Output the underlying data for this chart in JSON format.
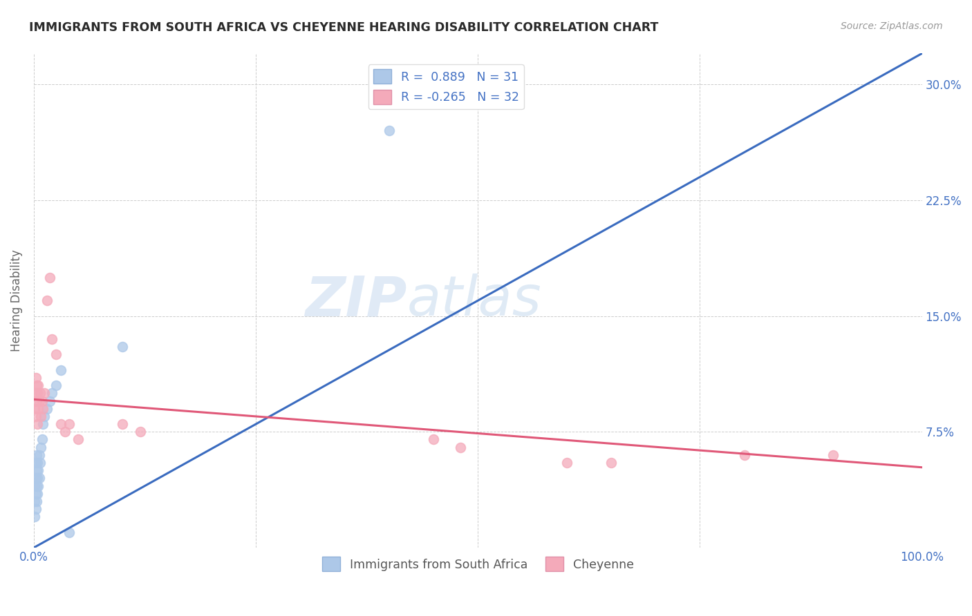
{
  "title": "IMMIGRANTS FROM SOUTH AFRICA VS CHEYENNE HEARING DISABILITY CORRELATION CHART",
  "source_text": "Source: ZipAtlas.com",
  "ylabel": "Hearing Disability",
  "xlim": [
    0.0,
    1.0
  ],
  "ylim": [
    0.0,
    0.32
  ],
  "yticks": [
    0.0,
    0.075,
    0.15,
    0.225,
    0.3
  ],
  "yticklabels_right": [
    "",
    "7.5%",
    "15.0%",
    "22.5%",
    "30.0%"
  ],
  "xtick_labels": [
    "0.0%",
    "",
    "",
    "",
    "100.0%"
  ],
  "blue_R": 0.889,
  "blue_N": 31,
  "pink_R": -0.265,
  "pink_N": 32,
  "blue_color": "#adc8e8",
  "pink_color": "#f4aaba",
  "blue_line_color": "#3a6bbf",
  "pink_line_color": "#e05878",
  "watermark_zip": "ZIP",
  "watermark_atlas": "atlas",
  "blue_line_x": [
    0.0,
    1.0
  ],
  "blue_line_y": [
    0.0,
    0.32
  ],
  "pink_line_x": [
    0.0,
    1.0
  ],
  "pink_line_y": [
    0.096,
    0.052
  ],
  "blue_scatter_x": [
    0.001,
    0.001,
    0.001,
    0.002,
    0.002,
    0.002,
    0.002,
    0.003,
    0.003,
    0.003,
    0.003,
    0.004,
    0.004,
    0.004,
    0.005,
    0.005,
    0.006,
    0.006,
    0.007,
    0.008,
    0.009,
    0.01,
    0.012,
    0.015,
    0.018,
    0.02,
    0.025,
    0.03,
    0.04,
    0.1,
    0.4
  ],
  "blue_scatter_y": [
    0.02,
    0.03,
    0.04,
    0.025,
    0.035,
    0.045,
    0.055,
    0.03,
    0.04,
    0.05,
    0.06,
    0.035,
    0.045,
    0.055,
    0.04,
    0.05,
    0.045,
    0.06,
    0.055,
    0.065,
    0.07,
    0.08,
    0.085,
    0.09,
    0.095,
    0.1,
    0.105,
    0.115,
    0.01,
    0.13,
    0.27
  ],
  "pink_scatter_x": [
    0.001,
    0.001,
    0.002,
    0.002,
    0.003,
    0.003,
    0.004,
    0.004,
    0.005,
    0.005,
    0.006,
    0.007,
    0.008,
    0.009,
    0.01,
    0.012,
    0.015,
    0.018,
    0.02,
    0.025,
    0.03,
    0.035,
    0.04,
    0.05,
    0.1,
    0.12,
    0.45,
    0.48,
    0.6,
    0.65,
    0.8,
    0.9
  ],
  "pink_scatter_y": [
    0.09,
    0.1,
    0.085,
    0.11,
    0.095,
    0.105,
    0.08,
    0.1,
    0.09,
    0.105,
    0.095,
    0.1,
    0.085,
    0.095,
    0.09,
    0.1,
    0.16,
    0.175,
    0.135,
    0.125,
    0.08,
    0.075,
    0.08,
    0.07,
    0.08,
    0.075,
    0.07,
    0.065,
    0.055,
    0.055,
    0.06,
    0.06
  ],
  "grid_color": "#cccccc",
  "bg_color": "#ffffff",
  "title_color": "#2a2a2a",
  "label_color": "#4472c4",
  "ylabel_color": "#666666"
}
